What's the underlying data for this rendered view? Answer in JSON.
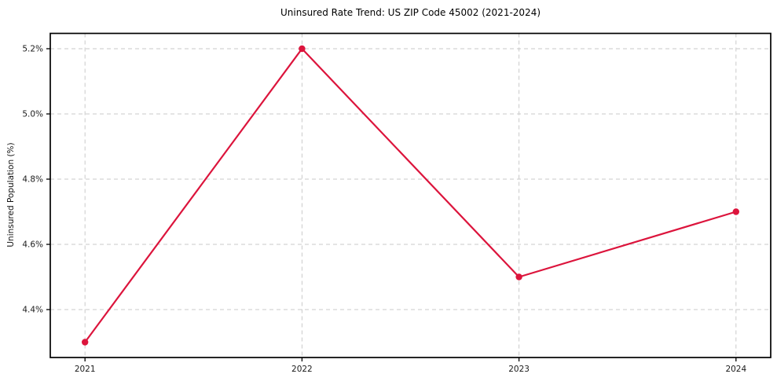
{
  "figure": {
    "background": "#ffffff"
  },
  "chart_data": {
    "type": "line",
    "title": "Uninsured Rate Trend: US ZIP Code 45002 (2021-2024)",
    "xlabel": "",
    "ylabel": "Uninsured Population (%)",
    "x": [
      2021,
      2022,
      2023,
      2024
    ],
    "x_tick_labels": [
      "2021",
      "2022",
      "2023",
      "2024"
    ],
    "y_ticks": [
      4.4,
      4.6,
      4.8,
      5.0,
      5.2
    ],
    "y_tick_labels": [
      "4.4%",
      "4.6%",
      "4.8%",
      "5.0%",
      "5.2%"
    ],
    "series": [
      {
        "name": "Uninsured rate (%)",
        "values": [
          4.3,
          5.2,
          4.5,
          4.7
        ]
      }
    ],
    "xlim": [
      2020.84,
      2024.16
    ],
    "ylim": [
      4.253,
      5.247
    ],
    "grid": true,
    "grid_style": "dashed",
    "legend_position": "none",
    "marker": "circle",
    "line_color": "#dc143c",
    "grid_color": "#c9c9c9",
    "axis_color": "#000000",
    "tick_label_color": "#1a1a1a"
  }
}
